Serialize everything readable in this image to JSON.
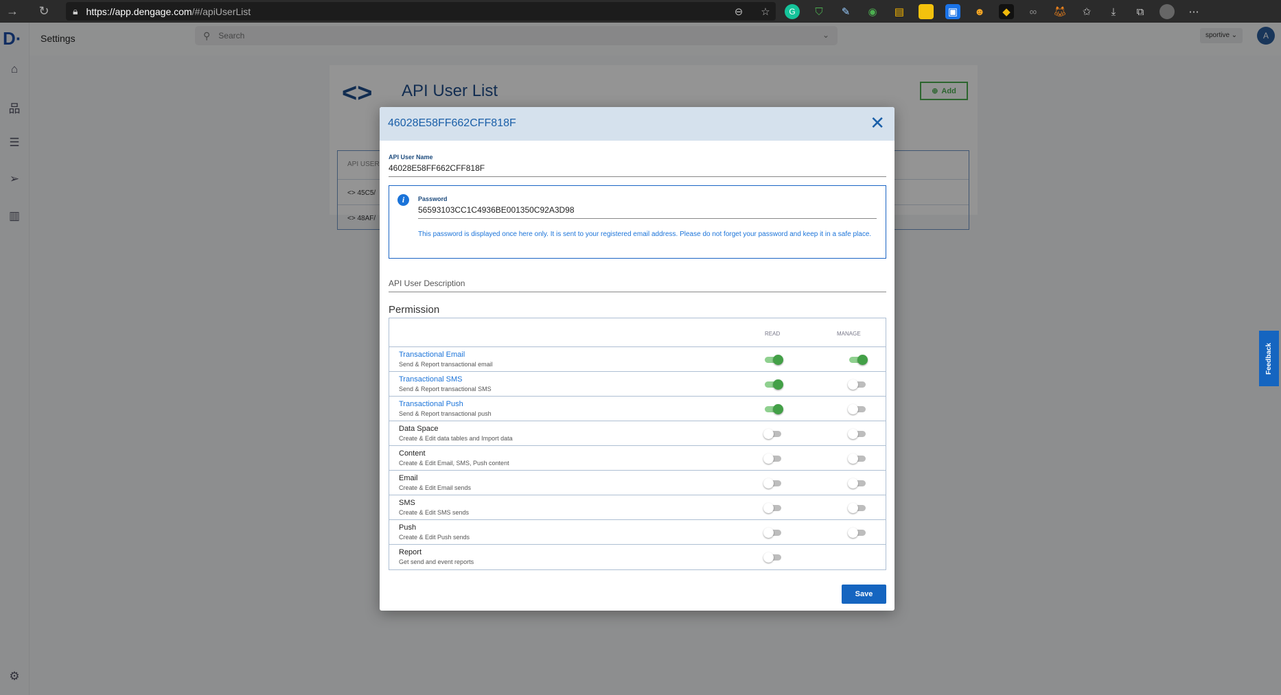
{
  "browser": {
    "url_host": "https://app.dengage.com",
    "url_path": "/#/apiUserList"
  },
  "app": {
    "logo": "D·",
    "page_title": "Settings",
    "search_placeholder": "Search",
    "account": "sportive ⌄",
    "avatar_initial": "A",
    "feedback_label": "Feedback"
  },
  "sidebar": {
    "items": [
      {
        "icon": "home-icon"
      },
      {
        "icon": "hierarchy-icon"
      },
      {
        "icon": "list-icon"
      },
      {
        "icon": "send-icon"
      },
      {
        "icon": "chart-icon"
      }
    ]
  },
  "background_page": {
    "title": "API User List",
    "add_label": "Add",
    "column_header": "API USER",
    "rows": [
      "45C5/",
      "48AF/"
    ]
  },
  "modal": {
    "title": "46028E58FF662CFF818F",
    "name_label": "API User Name",
    "name_value": "46028E58FF662CFF818F",
    "password_label": "Password",
    "password_value": "56593103CC1C4936BE001350C92A3D98",
    "password_note": "This password is displayed once here only. It is sent to your registered email address. Please do not forget your password and keep it in a safe place.",
    "description_placeholder": "API User Description",
    "permission_heading": "Permission",
    "col_read": "READ",
    "col_manage": "MANAGE",
    "permissions": [
      {
        "name": "Transactional Email",
        "desc": "Send & Report transactional email",
        "read": true,
        "manage": true,
        "highlight": true
      },
      {
        "name": "Transactional SMS",
        "desc": "Send & Report transactional SMS",
        "read": true,
        "manage": false,
        "highlight": true
      },
      {
        "name": "Transactional Push",
        "desc": "Send & Report transactional push",
        "read": true,
        "manage": false,
        "highlight": true
      },
      {
        "name": "Data Space",
        "desc": "Create & Edit data tables and Import data",
        "read": false,
        "manage": false
      },
      {
        "name": "Content",
        "desc": "Create & Edit Email, SMS, Push content",
        "read": false,
        "manage": false
      },
      {
        "name": "Email",
        "desc": "Create & Edit Email sends",
        "read": false,
        "manage": false
      },
      {
        "name": "SMS",
        "desc": "Create & Edit SMS sends",
        "read": false,
        "manage": false
      },
      {
        "name": "Push",
        "desc": "Create & Edit Push sends",
        "read": false,
        "manage": false
      },
      {
        "name": "Report",
        "desc": "Get send and event reports",
        "read": false,
        "manage": null
      }
    ],
    "save_label": "Save"
  },
  "colors": {
    "primary": "#1565c0",
    "toggle_on": "#43a047",
    "modal_header": "#d5e1ed"
  }
}
